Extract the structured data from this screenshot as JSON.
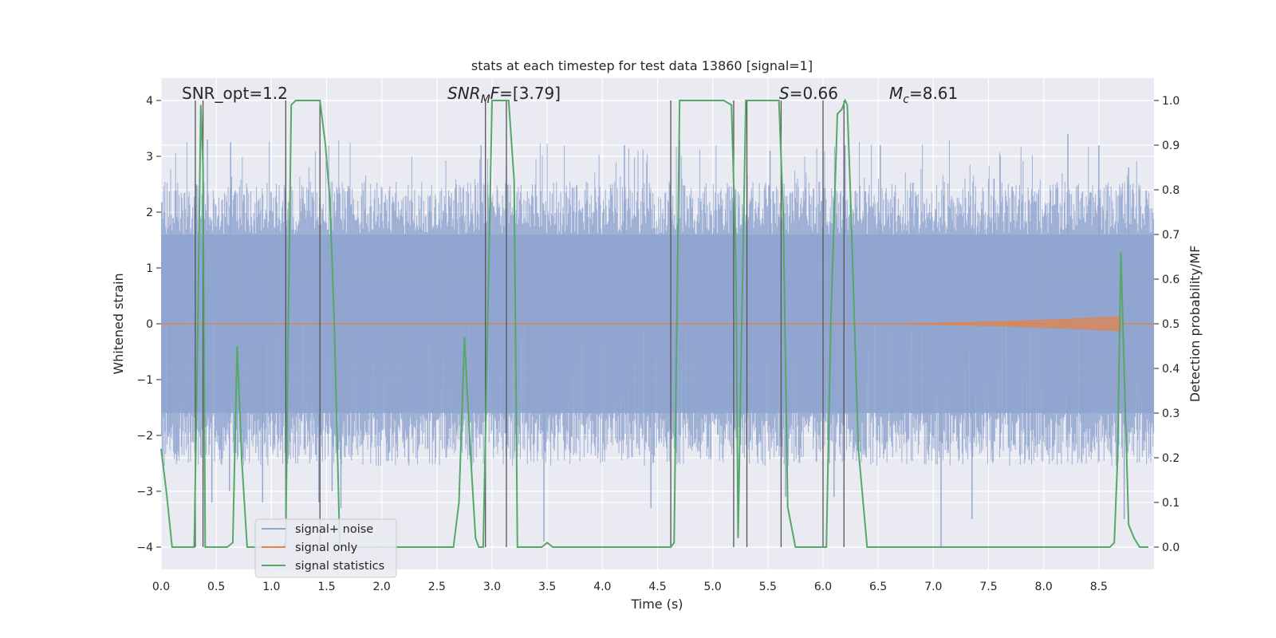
{
  "chart_data": {
    "type": "line",
    "title": "stats at each timestep for test data 13860 [signal=1]",
    "xlabel": "Time (s)",
    "ylabel": "Whitened strain",
    "y2label": "Detection probability/MF",
    "xlim": [
      0,
      9
    ],
    "ylim": [
      -4.4,
      4.4
    ],
    "y2lim": [
      -0.05,
      1.05
    ],
    "grid": true,
    "legend_position": "lower-left",
    "xticks": [
      "0.0",
      "0.5",
      "1.0",
      "1.5",
      "2.0",
      "2.5",
      "3.0",
      "3.5",
      "4.0",
      "4.5",
      "5.0",
      "5.5",
      "6.0",
      "6.5",
      "7.0",
      "7.5",
      "8.0",
      "8.5"
    ],
    "xtick_values": [
      0,
      0.5,
      1,
      1.5,
      2,
      2.5,
      3,
      3.5,
      4,
      4.5,
      5,
      5.5,
      6,
      6.5,
      7,
      7.5,
      8,
      8.5
    ],
    "yticks": [
      "−4",
      "−3",
      "−2",
      "−1",
      "0",
      "1",
      "2",
      "3",
      "4"
    ],
    "ytick_values": [
      -4,
      -3,
      -2,
      -1,
      0,
      1,
      2,
      3,
      4
    ],
    "y2ticks": [
      "0.0",
      "0.1",
      "0.2",
      "0.3",
      "0.4",
      "0.5",
      "0.6",
      "0.7",
      "0.8",
      "0.9",
      "1.0"
    ],
    "y2tick_values": [
      0,
      0.1,
      0.2,
      0.3,
      0.4,
      0.5,
      0.6,
      0.7,
      0.8,
      0.9,
      1.0
    ],
    "annotations": [
      {
        "id": "snr-opt",
        "text": "SNR_opt=1.2",
        "x": 0.2,
        "y": 4.0
      },
      {
        "id": "snr-mf",
        "text": "SNR_MF=[3.79]",
        "x": 2.6,
        "y": 4.0
      },
      {
        "id": "s",
        "text": "S=0.66",
        "x": 5.62,
        "y": 4.0
      },
      {
        "id": "mc",
        "text": "M_c=8.61",
        "x": 6.6,
        "y": 4.0
      }
    ],
    "vertical_lines_x": [
      0.31,
      0.38,
      1.13,
      1.44,
      2.94,
      3.13,
      4.62,
      5.19,
      5.31,
      5.62,
      6.0,
      6.19
    ],
    "series": [
      {
        "name": "signal+ noise",
        "color": "#8fa5cf",
        "axis": "left",
        "noise_band": {
          "core_min": -1.6,
          "core_max": 1.6,
          "spike_max": 3.3,
          "spike_min": -3.4,
          "outliers": [
            {
              "x": 0.32,
              "y": 2.5
            },
            {
              "x": 0.37,
              "y": -1.4
            },
            {
              "x": 0.42,
              "y": 3.3
            },
            {
              "x": 0.46,
              "y": -3.2
            },
            {
              "x": 0.62,
              "y": -3.0
            },
            {
              "x": 0.63,
              "y": 3.25
            },
            {
              "x": 0.92,
              "y": -3.2
            },
            {
              "x": 1.13,
              "y": 3.0
            },
            {
              "x": 1.43,
              "y": -3.2
            },
            {
              "x": 1.55,
              "y": -3.0
            },
            {
              "x": 1.63,
              "y": -3.3
            },
            {
              "x": 2.9,
              "y": 3.2
            },
            {
              "x": 2.96,
              "y": 2.5
            },
            {
              "x": 3.47,
              "y": -3.9
            },
            {
              "x": 3.13,
              "y": 2.8
            },
            {
              "x": 4.2,
              "y": 3.2
            },
            {
              "x": 4.44,
              "y": -3.3
            },
            {
              "x": 5.52,
              "y": 3.1
            },
            {
              "x": 5.66,
              "y": -3.1
            },
            {
              "x": 6.1,
              "y": -3.1
            },
            {
              "x": 6.2,
              "y": 3.2
            },
            {
              "x": 6.52,
              "y": 3.2
            },
            {
              "x": 7.07,
              "y": -4.0
            },
            {
              "x": 7.35,
              "y": -3.5
            },
            {
              "x": 7.55,
              "y": 2.6
            },
            {
              "x": 8.22,
              "y": 3.4
            },
            {
              "x": 8.5,
              "y": 3.2
            },
            {
              "x": 8.73,
              "y": -3.5
            },
            {
              "x": 8.77,
              "y": 2.8
            }
          ]
        }
      },
      {
        "name": "signal only",
        "color": "#dd8452",
        "axis": "left",
        "envelope": {
          "t0": 6.0,
          "t1": 8.7,
          "amp0": 0.0,
          "amp1": 0.13
        }
      },
      {
        "name": "signal statistics",
        "color": "#55a868",
        "axis": "right",
        "x": [
          0.0,
          0.05,
          0.1,
          0.15,
          0.2,
          0.25,
          0.3,
          0.33,
          0.36,
          0.38,
          0.4,
          0.44,
          0.5,
          0.55,
          0.6,
          0.65,
          0.69,
          0.73,
          0.78,
          0.82,
          1.1,
          1.13,
          1.15,
          1.18,
          1.22,
          1.27,
          1.33,
          1.4,
          1.44,
          1.49,
          1.53,
          1.57,
          1.62,
          2.0,
          2.5,
          2.6,
          2.65,
          2.7,
          2.75,
          2.8,
          2.85,
          2.88,
          2.92,
          2.96,
          3.0,
          3.05,
          3.1,
          3.15,
          3.2,
          3.23,
          3.27,
          3.32,
          3.4,
          3.45,
          3.5,
          3.55,
          4.0,
          4.5,
          4.62,
          4.65,
          4.7,
          5.1,
          5.17,
          5.21,
          5.23,
          5.26,
          5.3,
          5.35,
          5.4,
          5.5,
          5.6,
          5.64,
          5.68,
          5.75,
          5.85,
          5.9,
          5.97,
          6.03,
          6.07,
          6.13,
          6.17,
          6.2,
          6.22,
          6.25,
          6.32,
          6.4,
          6.45,
          6.5,
          7.0,
          7.5,
          8.0,
          8.5,
          8.6,
          8.64,
          8.67,
          8.7,
          8.73,
          8.77,
          8.82,
          8.87,
          8.95
        ],
        "y": [
          0.22,
          0.12,
          0.0,
          0.0,
          0.0,
          0.0,
          0.0,
          0.45,
          0.99,
          0.85,
          0.0,
          0.0,
          0.0,
          0.0,
          0.0,
          0.01,
          0.45,
          0.2,
          0.0,
          0.0,
          0.0,
          0.01,
          0.45,
          0.99,
          1.0,
          1.0,
          1.0,
          1.0,
          1.0,
          0.9,
          0.78,
          0.5,
          0.0,
          0.0,
          0.0,
          0.0,
          0.0,
          0.1,
          0.47,
          0.23,
          0.02,
          0.0,
          0.0,
          0.5,
          1.0,
          1.0,
          1.0,
          1.0,
          0.82,
          0.0,
          0.0,
          0.0,
          0.0,
          0.0,
          0.01,
          0.0,
          0.0,
          0.0,
          0.0,
          0.01,
          1.0,
          1.0,
          0.99,
          0.64,
          0.02,
          0.45,
          1.0,
          1.0,
          1.0,
          1.0,
          1.0,
          0.74,
          0.09,
          0.0,
          0.0,
          0.0,
          0.0,
          0.0,
          0.5,
          0.97,
          0.98,
          1.0,
          0.99,
          0.78,
          0.22,
          0.0,
          0.0,
          0.0,
          0.0,
          0.0,
          0.0,
          0.0,
          0.0,
          0.01,
          0.2,
          0.66,
          0.39,
          0.05,
          0.02,
          0.0,
          0.0
        ]
      }
    ]
  },
  "legend": {
    "items": [
      {
        "label": "signal+ noise",
        "color": "#8fa5cf"
      },
      {
        "label": "signal only",
        "color": "#dd8452"
      },
      {
        "label": "signal statistics",
        "color": "#55a868"
      }
    ]
  }
}
